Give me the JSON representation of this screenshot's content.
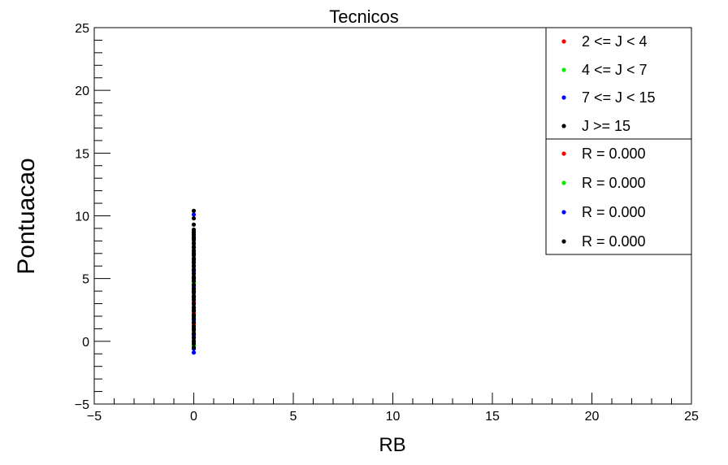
{
  "chart_data": {
    "type": "scatter",
    "title": "Tecnicos",
    "xlabel": "RB",
    "ylabel": "Pontuacao",
    "xlim": [
      -5,
      25
    ],
    "ylim": [
      -5,
      25
    ],
    "xticks": [
      "−5",
      "0",
      "5",
      "10",
      "15",
      "20",
      "25"
    ],
    "yticks": [
      "−5",
      "0",
      "5",
      "10",
      "15",
      "20",
      "25"
    ],
    "grid": false,
    "legend_position": "top-right",
    "series": [
      {
        "name": "2 <= J < 4",
        "color": "#ff0000",
        "x": [
          0,
          0,
          0,
          0,
          0,
          0
        ],
        "y": [
          -0.5,
          0.6,
          1.4,
          2.2,
          3.1,
          4.0
        ]
      },
      {
        "name": "4 <= J < 7",
        "color": "#00ee00",
        "x": [
          0,
          0,
          0,
          0,
          0,
          0
        ],
        "y": [
          -0.3,
          0.9,
          1.8,
          2.7,
          3.6,
          4.6
        ]
      },
      {
        "name": "7 <= J < 15",
        "color": "#0000ff",
        "x": [
          0,
          0,
          0,
          0,
          0,
          0,
          0,
          0,
          0,
          0
        ],
        "y": [
          -0.9,
          -0.6,
          0.5,
          1.7,
          3.0,
          4.4,
          5.6,
          6.9,
          8.2,
          10.1
        ]
      },
      {
        "name": "J >= 15",
        "color": "#000000",
        "x": [
          0,
          0,
          0,
          0,
          0,
          0,
          0,
          0,
          0,
          0,
          0,
          0,
          0,
          0,
          0,
          0,
          0,
          0,
          0,
          0,
          0,
          0,
          0,
          0,
          0,
          0,
          0,
          0,
          0,
          0,
          0,
          0,
          0,
          0,
          0,
          0,
          0,
          0,
          0,
          0,
          0,
          0,
          0,
          0,
          0
        ],
        "y": [
          -0.5,
          -0.2,
          0.0,
          0.3,
          0.6,
          0.9,
          1.2,
          1.5,
          1.8,
          2.1,
          2.4,
          2.7,
          3.0,
          3.3,
          3.6,
          3.9,
          4.2,
          4.5,
          4.8,
          5.1,
          5.4,
          5.7,
          6.0,
          6.3,
          6.6,
          6.9,
          7.2,
          7.5,
          7.8,
          8.1,
          8.3,
          8.5,
          8.7,
          8.9,
          9.3,
          9.8,
          10.4,
          1.0,
          2.0,
          3.5,
          5.0,
          6.5,
          7.0,
          4.0,
          2.5
        ]
      }
    ],
    "correlations": [
      "R = 0.000",
      "R = 0.000",
      "R = 0.000",
      "R = 0.000"
    ]
  }
}
